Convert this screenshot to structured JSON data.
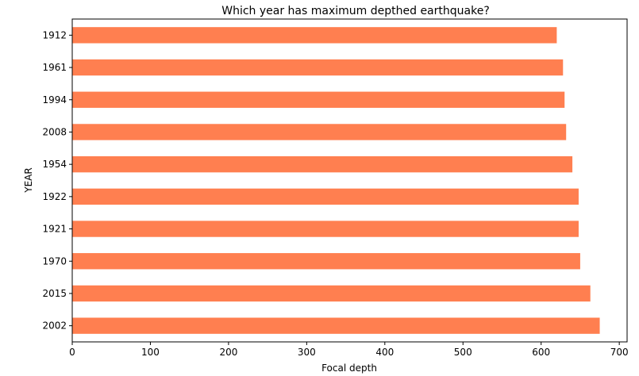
{
  "chart_data": {
    "type": "bar",
    "orientation": "horizontal",
    "title": "Which year has maximum depthed earthquake?",
    "xlabel": "Focal depth",
    "ylabel": "YEAR",
    "categories": [
      "1912",
      "1961",
      "1994",
      "2008",
      "1954",
      "1922",
      "1921",
      "1970",
      "2015",
      "2002"
    ],
    "values": [
      620,
      628,
      630,
      632,
      640,
      648,
      648,
      650,
      663,
      675
    ],
    "xlim": [
      0,
      710
    ],
    "xticks": [
      "0",
      "100",
      "200",
      "300",
      "400",
      "500",
      "600",
      "700"
    ],
    "bar_color": "#ff7f50",
    "grid": false,
    "legend": "none"
  }
}
